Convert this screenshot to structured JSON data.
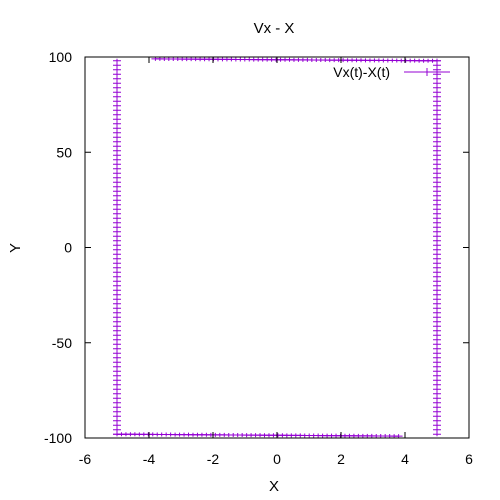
{
  "chart_data": {
    "type": "line",
    "title": "Vx -  X",
    "xlabel": "X",
    "ylabel": "Y",
    "xlim": [
      -6,
      6
    ],
    "ylim": [
      -100,
      100
    ],
    "xticks": [
      -6,
      -4,
      -2,
      0,
      2,
      4,
      6
    ],
    "yticks": [
      -100,
      -50,
      0,
      50,
      100
    ],
    "xtick_labels": [
      "-6",
      "-4",
      "-2",
      "0",
      "2",
      "4",
      "6"
    ],
    "ytick_labels": [
      "-100",
      "-50",
      "0",
      "50",
      "100"
    ],
    "grid": false,
    "legend_position": "top-right",
    "series": [
      {
        "name": "Vx(t)-X(t)",
        "color": "#9400d3",
        "marker": "plus",
        "segments": [
          {
            "x": [
              -5,
              -5
            ],
            "y": [
              -98,
              98
            ]
          },
          {
            "x": [
              -3.8,
              5
            ],
            "y": [
              99,
              98
            ]
          },
          {
            "x": [
              5,
              5
            ],
            "y": [
              98,
              -98
            ]
          },
          {
            "x": [
              3.8,
              -5
            ],
            "y": [
              -99,
              -98
            ]
          }
        ]
      }
    ]
  }
}
